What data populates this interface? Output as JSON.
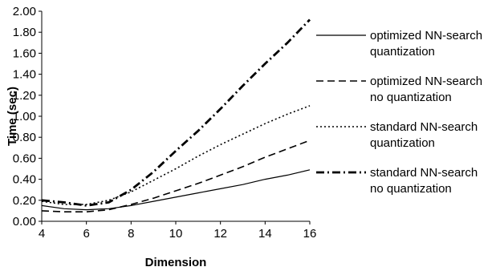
{
  "chart_data": {
    "type": "line",
    "title": "",
    "xlabel": "Dimension",
    "ylabel": "Time (sec)",
    "xlim": [
      4,
      16
    ],
    "ylim": [
      0,
      2
    ],
    "x_ticks": [
      "4",
      "6",
      "8",
      "10",
      "12",
      "14",
      "16"
    ],
    "y_ticks": [
      "0.00",
      "0.20",
      "0.40",
      "0.60",
      "0.80",
      "1.00",
      "1.20",
      "1.40",
      "1.60",
      "1.80",
      "2.00"
    ],
    "legend_position": "right",
    "grid": false,
    "x": [
      4,
      5,
      6,
      7,
      8,
      9,
      10,
      11,
      12,
      13,
      14,
      15,
      16
    ],
    "series": [
      {
        "name_lines": [
          "optimized NN-search",
          "quantization"
        ],
        "dash": "solid",
        "values": [
          0.15,
          0.12,
          0.11,
          0.12,
          0.15,
          0.19,
          0.23,
          0.27,
          0.31,
          0.35,
          0.4,
          0.44,
          0.49
        ]
      },
      {
        "name_lines": [
          "optimized NN-search",
          "no quantization"
        ],
        "dash": "dashed",
        "values": [
          0.1,
          0.09,
          0.09,
          0.11,
          0.16,
          0.22,
          0.29,
          0.36,
          0.44,
          0.52,
          0.61,
          0.69,
          0.77
        ]
      },
      {
        "name_lines": [
          "standard NN-search",
          "quantization"
        ],
        "dash": "dotted",
        "values": [
          0.19,
          0.16,
          0.16,
          0.2,
          0.28,
          0.39,
          0.5,
          0.62,
          0.73,
          0.83,
          0.93,
          1.02,
          1.1
        ]
      },
      {
        "name_lines": [
          "standard NN-search",
          "no quantization"
        ],
        "dash": "dashdot",
        "values": [
          0.2,
          0.18,
          0.15,
          0.18,
          0.3,
          0.47,
          0.67,
          0.86,
          1.07,
          1.29,
          1.5,
          1.7,
          1.92
        ]
      }
    ]
  }
}
